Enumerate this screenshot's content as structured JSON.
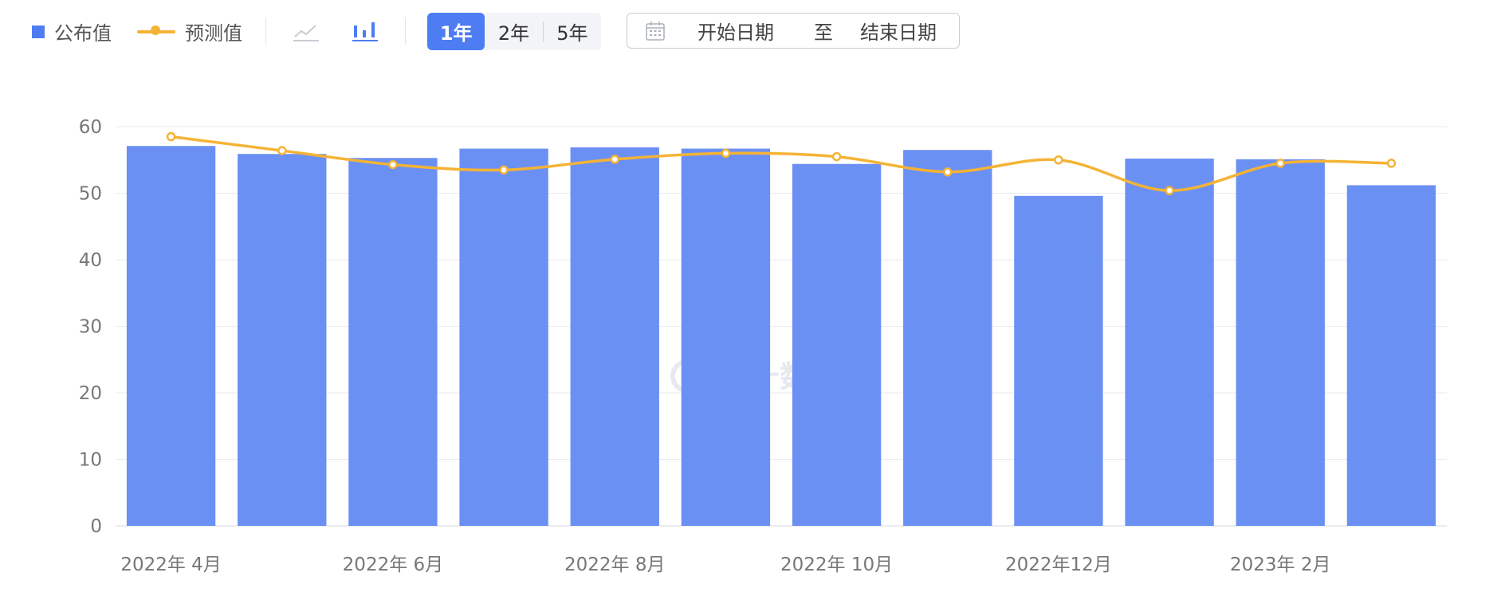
{
  "legend": {
    "series1": "公布值",
    "series2": "预测值"
  },
  "range_buttons": [
    "1年",
    "2年",
    "5年"
  ],
  "date_range": {
    "start": "开始日期",
    "to": "至",
    "end": "结束日期"
  },
  "watermark": "金十数据",
  "colors": {
    "bar": "#6b90f4",
    "line": "#f5b335",
    "accent": "#4d7cf3",
    "grid": "#e8eaee"
  },
  "chart_data": {
    "type": "bar",
    "ylim": [
      0,
      60
    ],
    "yticks": [
      0,
      10,
      20,
      30,
      40,
      50,
      60
    ],
    "x_tick_labels": [
      {
        "index": 0,
        "label": "2022年 4月"
      },
      {
        "index": 2,
        "label": "2022年 6月"
      },
      {
        "index": 4,
        "label": "2022年 8月"
      },
      {
        "index": 6,
        "label": "2022年 10月"
      },
      {
        "index": 8,
        "label": "2022年12月"
      },
      {
        "index": 10,
        "label": "2023年 2月"
      }
    ],
    "categories": [
      "2022-04",
      "2022-05",
      "2022-06",
      "2022-07",
      "2022-08",
      "2022-09",
      "2022-10",
      "2022-11",
      "2022-12",
      "2023-01",
      "2023-02",
      "2023-03"
    ],
    "series": [
      {
        "name": "公布值",
        "type": "bar",
        "values": [
          57.1,
          55.9,
          55.3,
          56.7,
          56.9,
          56.7,
          54.4,
          56.5,
          49.6,
          55.2,
          55.1,
          51.2
        ]
      },
      {
        "name": "预测值",
        "type": "line",
        "values": [
          58.5,
          56.4,
          54.3,
          53.5,
          55.1,
          56.0,
          55.5,
          53.2,
          55.0,
          50.4,
          54.5,
          54.5
        ]
      }
    ]
  }
}
